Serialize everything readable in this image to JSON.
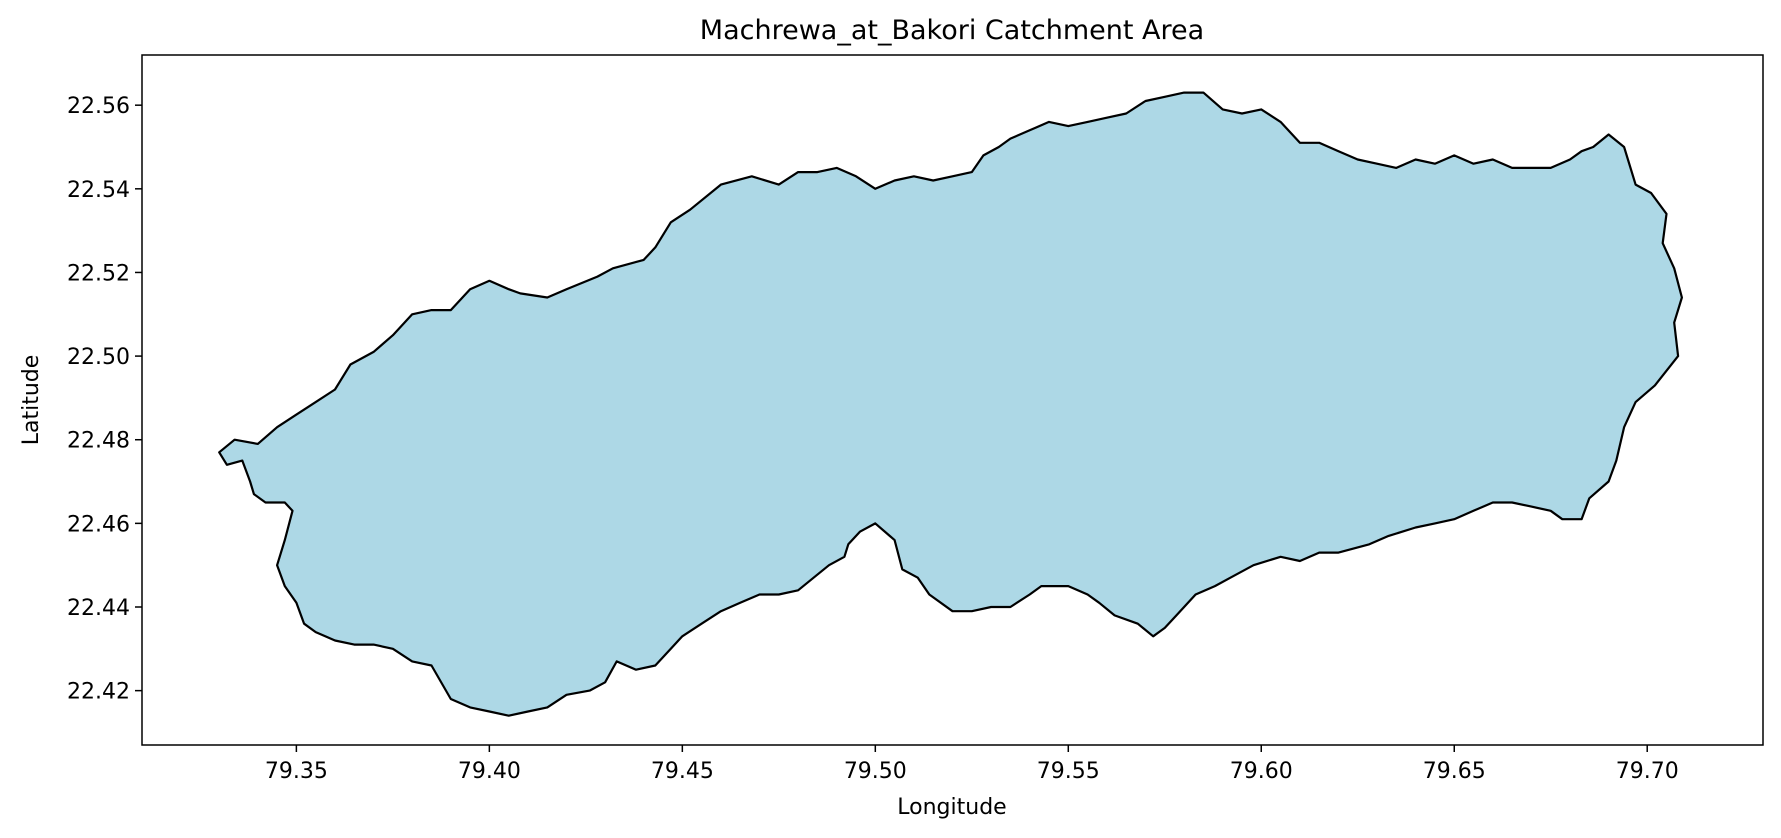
{
  "chart_data": {
    "type": "map",
    "title": "Machrewa_at_Bakori Catchment Area",
    "xlabel": "Longitude",
    "ylabel": "Latitude",
    "xlim": [
      79.31,
      79.73
    ],
    "ylim": [
      22.407,
      22.572
    ],
    "xticks": [
      79.35,
      79.4,
      79.45,
      79.5,
      79.55,
      79.6,
      79.65,
      79.7
    ],
    "xtick_labels": [
      "79.35",
      "79.40",
      "79.45",
      "79.50",
      "79.55",
      "79.60",
      "79.65",
      "79.70"
    ],
    "yticks": [
      22.42,
      22.44,
      22.46,
      22.48,
      22.5,
      22.52,
      22.54,
      22.56
    ],
    "ytick_labels": [
      "22.42",
      "22.44",
      "22.46",
      "22.48",
      "22.50",
      "22.52",
      "22.54",
      "22.56"
    ],
    "grid": false,
    "fill_color": "#add8e6",
    "edge_color": "#000000",
    "boundary": [
      [
        79.33,
        22.477
      ],
      [
        79.334,
        22.48
      ],
      [
        79.34,
        22.479
      ],
      [
        79.345,
        22.483
      ],
      [
        79.35,
        22.486
      ],
      [
        79.355,
        22.489
      ],
      [
        79.36,
        22.492
      ],
      [
        79.364,
        22.498
      ],
      [
        79.37,
        22.501
      ],
      [
        79.375,
        22.505
      ],
      [
        79.38,
        22.51
      ],
      [
        79.385,
        22.511
      ],
      [
        79.39,
        22.511
      ],
      [
        79.395,
        22.516
      ],
      [
        79.4,
        22.518
      ],
      [
        79.405,
        22.516
      ],
      [
        79.408,
        22.515
      ],
      [
        79.415,
        22.514
      ],
      [
        79.42,
        22.516
      ],
      [
        79.428,
        22.519
      ],
      [
        79.432,
        22.521
      ],
      [
        79.44,
        22.523
      ],
      [
        79.443,
        22.526
      ],
      [
        79.447,
        22.532
      ],
      [
        79.452,
        22.535
      ],
      [
        79.46,
        22.541
      ],
      [
        79.468,
        22.543
      ],
      [
        79.475,
        22.541
      ],
      [
        79.48,
        22.544
      ],
      [
        79.485,
        22.544
      ],
      [
        79.49,
        22.545
      ],
      [
        79.495,
        22.543
      ],
      [
        79.5,
        22.54
      ],
      [
        79.505,
        22.542
      ],
      [
        79.51,
        22.543
      ],
      [
        79.515,
        22.542
      ],
      [
        79.52,
        22.543
      ],
      [
        79.525,
        22.544
      ],
      [
        79.528,
        22.548
      ],
      [
        79.532,
        22.55
      ],
      [
        79.535,
        22.552
      ],
      [
        79.54,
        22.554
      ],
      [
        79.545,
        22.556
      ],
      [
        79.55,
        22.555
      ],
      [
        79.555,
        22.556
      ],
      [
        79.56,
        22.557
      ],
      [
        79.565,
        22.558
      ],
      [
        79.57,
        22.561
      ],
      [
        79.575,
        22.562
      ],
      [
        79.58,
        22.563
      ],
      [
        79.585,
        22.563
      ],
      [
        79.59,
        22.559
      ],
      [
        79.595,
        22.558
      ],
      [
        79.6,
        22.559
      ],
      [
        79.605,
        22.556
      ],
      [
        79.61,
        22.551
      ],
      [
        79.615,
        22.551
      ],
      [
        79.62,
        22.549
      ],
      [
        79.625,
        22.547
      ],
      [
        79.63,
        22.546
      ],
      [
        79.635,
        22.545
      ],
      [
        79.64,
        22.547
      ],
      [
        79.645,
        22.546
      ],
      [
        79.65,
        22.548
      ],
      [
        79.655,
        22.546
      ],
      [
        79.66,
        22.547
      ],
      [
        79.665,
        22.545
      ],
      [
        79.67,
        22.545
      ],
      [
        79.675,
        22.545
      ],
      [
        79.68,
        22.547
      ],
      [
        79.683,
        22.549
      ],
      [
        79.686,
        22.55
      ],
      [
        79.69,
        22.553
      ],
      [
        79.694,
        22.55
      ],
      [
        79.697,
        22.541
      ],
      [
        79.701,
        22.539
      ],
      [
        79.705,
        22.534
      ],
      [
        79.704,
        22.527
      ],
      [
        79.707,
        22.521
      ],
      [
        79.709,
        22.514
      ],
      [
        79.707,
        22.508
      ],
      [
        79.708,
        22.5
      ],
      [
        79.702,
        22.493
      ],
      [
        79.697,
        22.489
      ],
      [
        79.694,
        22.483
      ],
      [
        79.692,
        22.475
      ],
      [
        79.69,
        22.47
      ],
      [
        79.685,
        22.466
      ],
      [
        79.683,
        22.461
      ],
      [
        79.678,
        22.461
      ],
      [
        79.675,
        22.463
      ],
      [
        79.67,
        22.464
      ],
      [
        79.665,
        22.465
      ],
      [
        79.66,
        22.465
      ],
      [
        79.655,
        22.463
      ],
      [
        79.65,
        22.461
      ],
      [
        79.645,
        22.46
      ],
      [
        79.64,
        22.459
      ],
      [
        79.633,
        22.457
      ],
      [
        79.628,
        22.455
      ],
      [
        79.62,
        22.453
      ],
      [
        79.615,
        22.453
      ],
      [
        79.61,
        22.451
      ],
      [
        79.605,
        22.452
      ],
      [
        79.598,
        22.45
      ],
      [
        79.592,
        22.447
      ],
      [
        79.588,
        22.445
      ],
      [
        79.583,
        22.443
      ],
      [
        79.578,
        22.438
      ],
      [
        79.575,
        22.435
      ],
      [
        79.572,
        22.433
      ],
      [
        79.568,
        22.436
      ],
      [
        79.562,
        22.438
      ],
      [
        79.558,
        22.441
      ],
      [
        79.555,
        22.443
      ],
      [
        79.55,
        22.445
      ],
      [
        79.546,
        22.445
      ],
      [
        79.543,
        22.445
      ],
      [
        79.54,
        22.443
      ],
      [
        79.535,
        22.44
      ],
      [
        79.53,
        22.44
      ],
      [
        79.525,
        22.439
      ],
      [
        79.52,
        22.439
      ],
      [
        79.514,
        22.443
      ],
      [
        79.511,
        22.447
      ],
      [
        79.507,
        22.449
      ],
      [
        79.505,
        22.456
      ],
      [
        79.5,
        22.46
      ],
      [
        79.496,
        22.458
      ],
      [
        79.493,
        22.455
      ],
      [
        79.492,
        22.452
      ],
      [
        79.488,
        22.45
      ],
      [
        79.484,
        22.447
      ],
      [
        79.48,
        22.444
      ],
      [
        79.475,
        22.443
      ],
      [
        79.47,
        22.443
      ],
      [
        79.465,
        22.441
      ],
      [
        79.46,
        22.439
      ],
      [
        79.455,
        22.436
      ],
      [
        79.45,
        22.433
      ],
      [
        79.447,
        22.43
      ],
      [
        79.443,
        22.426
      ],
      [
        79.438,
        22.425
      ],
      [
        79.433,
        22.427
      ],
      [
        79.43,
        22.422
      ],
      [
        79.426,
        22.42
      ],
      [
        79.42,
        22.419
      ],
      [
        79.415,
        22.416
      ],
      [
        79.41,
        22.415
      ],
      [
        79.405,
        22.414
      ],
      [
        79.4,
        22.415
      ],
      [
        79.395,
        22.416
      ],
      [
        79.39,
        22.418
      ],
      [
        79.385,
        22.426
      ],
      [
        79.38,
        22.427
      ],
      [
        79.375,
        22.43
      ],
      [
        79.37,
        22.431
      ],
      [
        79.365,
        22.431
      ],
      [
        79.36,
        22.432
      ],
      [
        79.355,
        22.434
      ],
      [
        79.352,
        22.436
      ],
      [
        79.35,
        22.441
      ],
      [
        79.347,
        22.445
      ],
      [
        79.345,
        22.45
      ],
      [
        79.347,
        22.456
      ],
      [
        79.349,
        22.463
      ],
      [
        79.347,
        22.465
      ],
      [
        79.342,
        22.465
      ],
      [
        79.339,
        22.467
      ],
      [
        79.338,
        22.47
      ],
      [
        79.336,
        22.475
      ],
      [
        79.332,
        22.474
      ]
    ]
  }
}
